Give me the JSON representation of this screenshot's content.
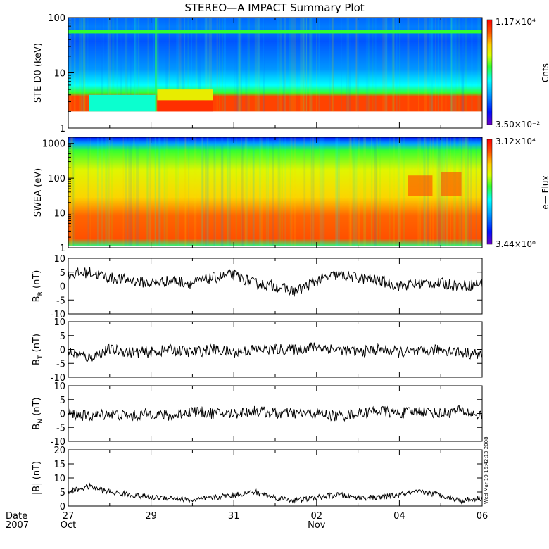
{
  "title": "STEREO—A IMPACT Summary Plot",
  "timestamp": "Wed Mar 19 16:42:13 2008",
  "colors": {
    "axis": "#000000",
    "trace": "#000000",
    "background": "#ffffff"
  },
  "chart_data": [
    {
      "type": "heatmap",
      "ylabel": "STE D0 (keV)",
      "yscale": "log",
      "ylim": [
        1,
        100
      ],
      "yticks": [
        "1",
        "10",
        "100"
      ],
      "colorbar": {
        "max": "1.17×10⁴",
        "min": "3.50×10⁻²",
        "label": "Cnts"
      },
      "grid": false
    },
    {
      "type": "heatmap",
      "ylabel": "SWEA (eV)",
      "yscale": "log",
      "ylim": [
        1,
        1500
      ],
      "yticks": [
        "1",
        "10",
        "100",
        "1000"
      ],
      "colorbar": {
        "max": "3.12×10⁴",
        "min": "3.44×10⁰",
        "label": "e— Flux"
      },
      "grid": false
    },
    {
      "type": "line",
      "ylabel_main": "B",
      "ylabel_sub": "R",
      "ylabel_unit": "(nT)",
      "ylim": [
        -10,
        10
      ],
      "yticks": [
        "-10",
        "-5",
        "0",
        "5",
        "10"
      ],
      "x": [
        0,
        0.5,
        1,
        1.5,
        2,
        2.5,
        3,
        3.5,
        4,
        4.5,
        5,
        5.5,
        6,
        6.5,
        7,
        7.5,
        8,
        8.5,
        9,
        9.5,
        10
      ],
      "values": [
        4,
        5,
        3,
        2,
        1,
        2,
        1,
        3,
        4,
        1,
        0,
        -2,
        2,
        4,
        3,
        2,
        0,
        1,
        1,
        0,
        1
      ],
      "grid": false
    },
    {
      "type": "line",
      "ylabel_main": "B",
      "ylabel_sub": "T",
      "ylabel_unit": "(nT)",
      "ylim": [
        -10,
        10
      ],
      "yticks": [
        "-10",
        "-5",
        "0",
        "5",
        "10"
      ],
      "x": [
        0,
        0.5,
        1,
        1.5,
        2,
        2.5,
        3,
        3.5,
        4,
        4.5,
        5,
        5.5,
        6,
        6.5,
        7,
        7.5,
        8,
        8.5,
        9,
        9.5,
        10
      ],
      "values": [
        -1,
        -3,
        0,
        -1,
        -1,
        0,
        -1,
        0,
        -1,
        0,
        0,
        0,
        1,
        0,
        -1,
        0,
        -1,
        -1,
        0,
        -1,
        -2
      ],
      "grid": false
    },
    {
      "type": "line",
      "ylabel_main": "B",
      "ylabel_sub": "N",
      "ylabel_unit": "(nT)",
      "ylim": [
        -10,
        10
      ],
      "yticks": [
        "-10",
        "-5",
        "0",
        "5",
        "10"
      ],
      "x": [
        0,
        0.5,
        1,
        1.5,
        2,
        2.5,
        3,
        3.5,
        4,
        4.5,
        5,
        5.5,
        6,
        6.5,
        7,
        7.5,
        8,
        8.5,
        9,
        9.5,
        10
      ],
      "values": [
        0,
        -1,
        0,
        -1,
        0,
        -1,
        1,
        0,
        0,
        1,
        0,
        0,
        0,
        -1,
        0,
        1,
        0,
        1,
        0,
        1,
        -1
      ],
      "grid": false
    },
    {
      "type": "line",
      "ylabel_main": "|B|",
      "ylabel_sub": "",
      "ylabel_unit": "(nT)",
      "ylim": [
        0,
        20
      ],
      "yticks": [
        "0",
        "5",
        "10",
        "15",
        "20"
      ],
      "x": [
        0,
        0.5,
        1,
        1.5,
        2,
        2.5,
        3,
        3.5,
        4,
        4.5,
        5,
        5.5,
        6,
        6.5,
        7,
        7.5,
        8,
        8.5,
        9,
        9.5,
        10
      ],
      "values": [
        5,
        7,
        5,
        4,
        3,
        3,
        2,
        3,
        4,
        5,
        3,
        2,
        3,
        4,
        3,
        3,
        4,
        5,
        4,
        2,
        3
      ],
      "grid": false
    }
  ],
  "xaxis": {
    "date_label": "Date",
    "year_label": "2007",
    "ticks": [
      {
        "day": "27",
        "month": "Oct",
        "x": 0
      },
      {
        "day": "29",
        "month": "",
        "x": 2
      },
      {
        "day": "31",
        "month": "",
        "x": 4
      },
      {
        "day": "02",
        "month": "Nov",
        "x": 6
      },
      {
        "day": "04",
        "month": "",
        "x": 8
      },
      {
        "day": "06",
        "month": "",
        "x": 10
      }
    ]
  }
}
